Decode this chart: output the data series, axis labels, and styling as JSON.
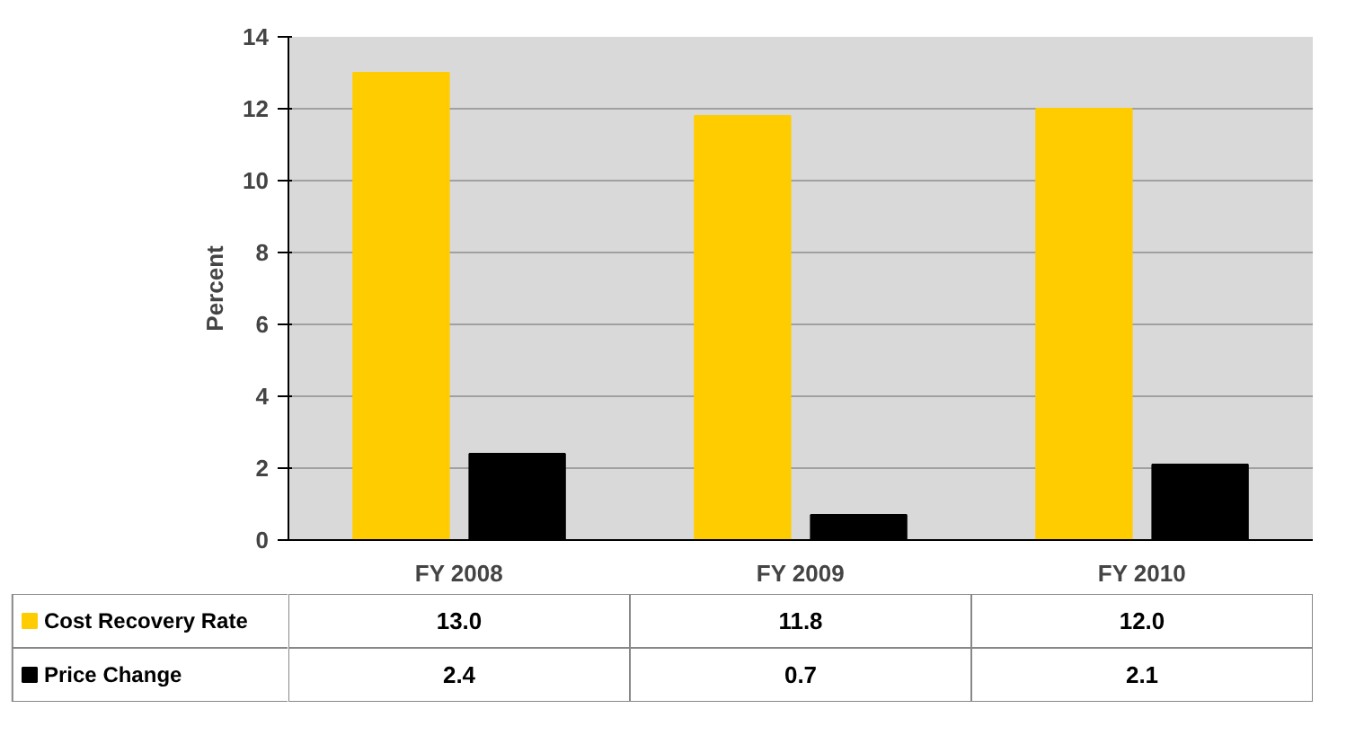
{
  "chart_data": {
    "type": "bar",
    "ylabel": "Percent",
    "categories": [
      "FY 2008",
      "FY 2009",
      "FY 2010"
    ],
    "series": [
      {
        "name": "Cost Recovery Rate",
        "color": "#ffcc00",
        "values": [
          13.0,
          11.8,
          12.0
        ],
        "value_labels": [
          "13.0",
          "11.8",
          "12.0"
        ]
      },
      {
        "name": "Price Change",
        "color": "#000000",
        "values": [
          2.4,
          0.7,
          2.1
        ],
        "value_labels": [
          "2.4",
          "0.7",
          "2.1"
        ]
      }
    ],
    "ylim": [
      0,
      14
    ],
    "yticks": [
      0,
      2,
      4,
      6,
      8,
      10,
      12,
      14
    ],
    "grid": "y",
    "legend": "bottom"
  }
}
